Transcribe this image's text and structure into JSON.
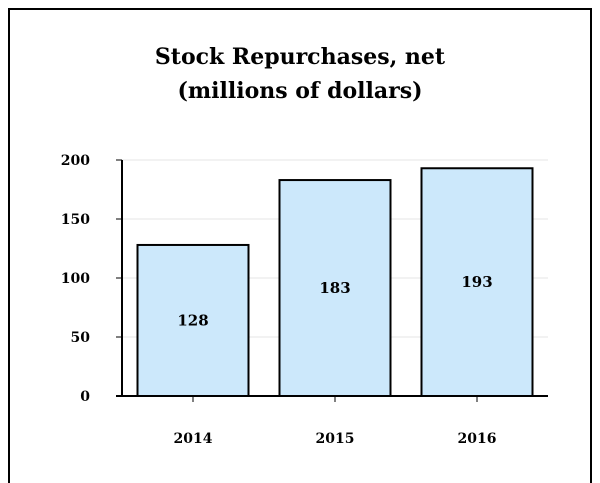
{
  "chart_data": {
    "type": "bar",
    "title": "Stock Repurchases, net",
    "subtitle": "(millions of dollars)",
    "categories": [
      "2014",
      "2015",
      "2016"
    ],
    "values": [
      128,
      183,
      193
    ],
    "data_labels": [
      "128",
      "183",
      "193"
    ],
    "y_ticks": [
      "0",
      "50",
      "100",
      "150",
      "200"
    ],
    "ylim": [
      0,
      200
    ],
    "grid": true,
    "bar_color": "#cce8fb",
    "bar_edge_color": "#000000"
  }
}
